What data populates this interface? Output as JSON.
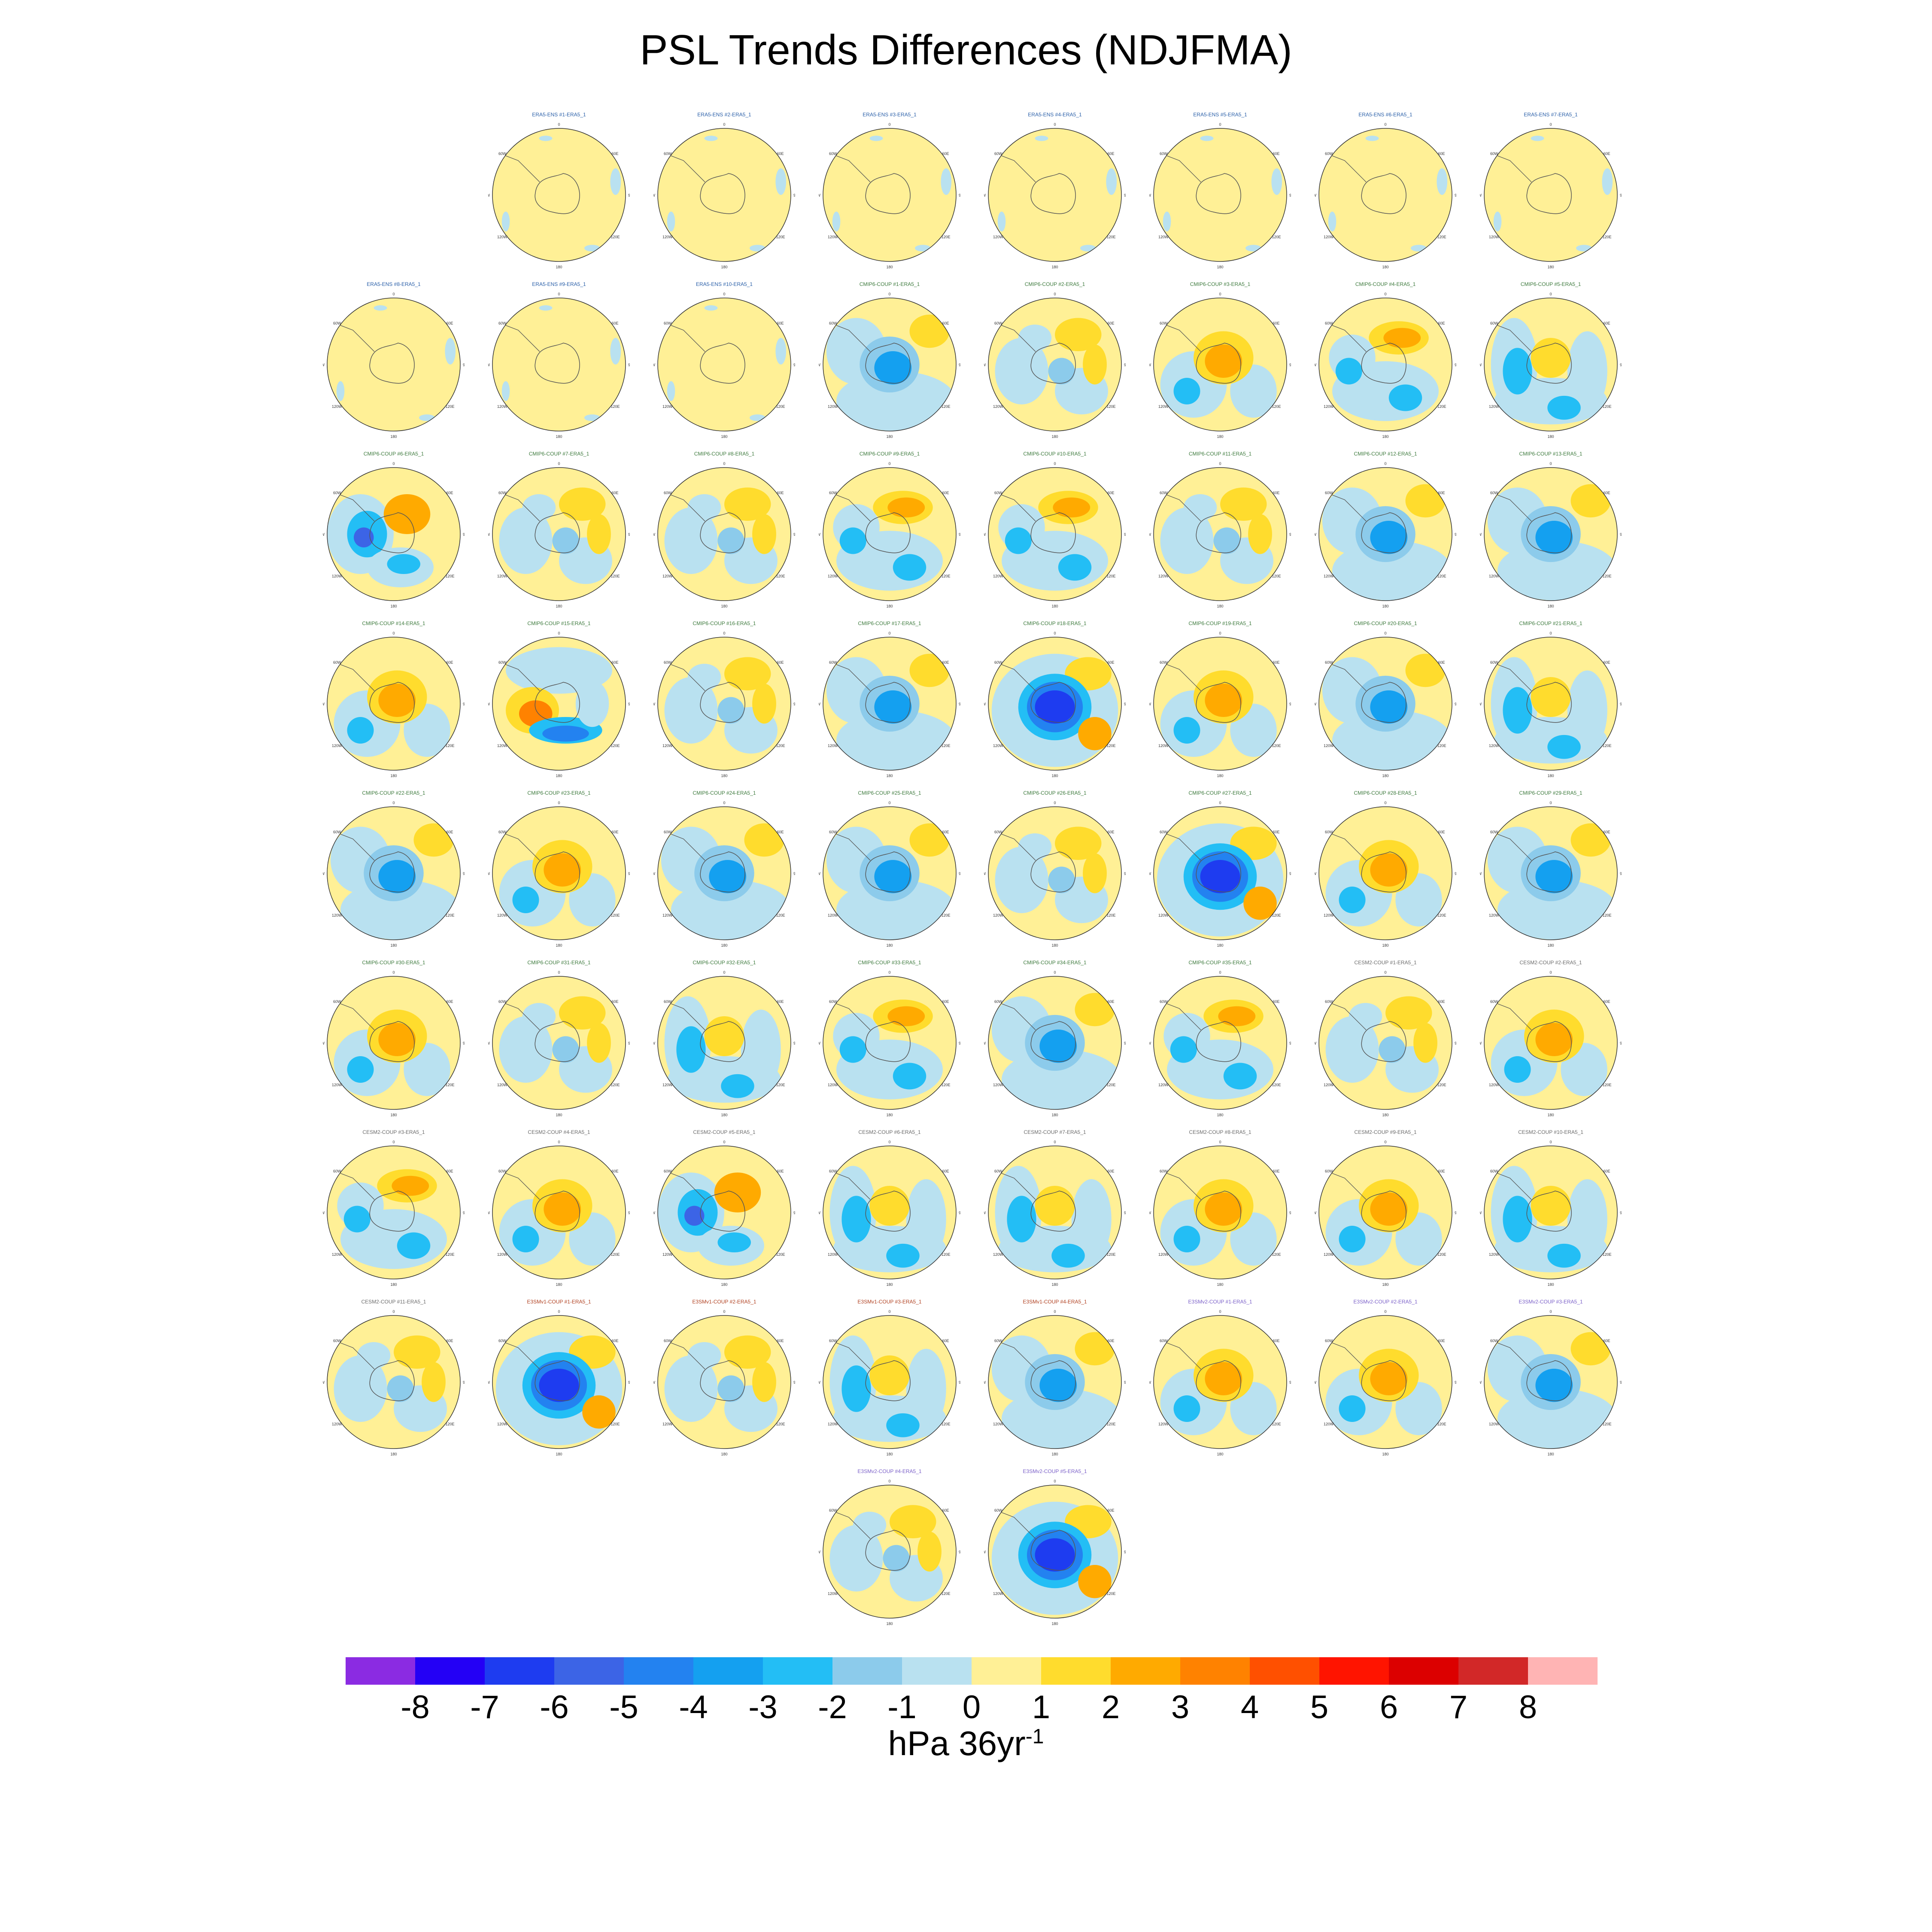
{
  "title": "PSL Trends Differences (NDJFMA)",
  "map_labels": {
    "top": "0",
    "upper_left": "60W",
    "upper_right": "60E",
    "left": "90W",
    "right": "90E",
    "lower_left": "120W",
    "lower_right": "120E",
    "bottom": "180"
  },
  "colorbar": {
    "colors": [
      "#8b2be2",
      "#2400f5",
      "#1e3cf0",
      "#3c64e6",
      "#2382f0",
      "#14a0f0",
      "#23bef5",
      "#8ccbeb",
      "#b9e1f0",
      "#fff096",
      "#ffdc2d",
      "#ffaa00",
      "#ff8200",
      "#ff5000",
      "#ff1400",
      "#dc0000",
      "#d22828",
      "#ffb4b4"
    ],
    "tick_labels": [
      "-8",
      "-7",
      "-6",
      "-5",
      "-4",
      "-3",
      "-2",
      "-1",
      "0",
      "1",
      "2",
      "3",
      "4",
      "5",
      "6",
      "7",
      "8"
    ]
  },
  "units": {
    "base": "hPa 36yr",
    "superscript": "-1"
  },
  "panel_colors": {
    "ERA5-ENS": "#2a5fa8",
    "CMIP6-COUP": "#3d7a3d",
    "CESM2-COUP": "#6b6b6b",
    "E3SMv1-COUP": "#b04020",
    "E3SMv2-COUP": "#7a5fc8"
  },
  "panels": [
    {
      "title": "ERA5-ENS    #1-ERA5_1",
      "group": "ERA5-ENS",
      "pattern": "flat"
    },
    {
      "title": "ERA5-ENS    #2-ERA5_1",
      "group": "ERA5-ENS",
      "pattern": "flat"
    },
    {
      "title": "ERA5-ENS    #3-ERA5_1",
      "group": "ERA5-ENS",
      "pattern": "flat"
    },
    {
      "title": "ERA5-ENS    #4-ERA5_1",
      "group": "ERA5-ENS",
      "pattern": "flat"
    },
    {
      "title": "ERA5-ENS    #5-ERA5_1",
      "group": "ERA5-ENS",
      "pattern": "flat"
    },
    {
      "title": "ERA5-ENS    #6-ERA5_1",
      "group": "ERA5-ENS",
      "pattern": "flat"
    },
    {
      "title": "ERA5-ENS    #7-ERA5_1",
      "group": "ERA5-ENS",
      "pattern": "flat"
    },
    {
      "title": "ERA5-ENS    #8-ERA5_1",
      "group": "ERA5-ENS",
      "pattern": "flat"
    },
    {
      "title": "ERA5-ENS    #9-ERA5_1",
      "group": "ERA5-ENS",
      "pattern": "flat"
    },
    {
      "title": "ERA5-ENS    #10-ERA5_1",
      "group": "ERA5-ENS",
      "pattern": "flat"
    },
    {
      "title": "CMIP6-COUP    #1-ERA5_1",
      "group": "CMIP6-COUP",
      "pattern": "blue-center"
    },
    {
      "title": "CMIP6-COUP    #2-ERA5_1",
      "group": "CMIP6-COUP",
      "pattern": "mixed"
    },
    {
      "title": "CMIP6-COUP    #3-ERA5_1",
      "group": "CMIP6-COUP",
      "pattern": "orange-center"
    },
    {
      "title": "CMIP6-COUP    #4-ERA5_1",
      "group": "CMIP6-COUP",
      "pattern": "orange-north"
    },
    {
      "title": "CMIP6-COUP    #5-ERA5_1",
      "group": "CMIP6-COUP",
      "pattern": "blue-ring"
    },
    {
      "title": "CMIP6-COUP    #6-ERA5_1",
      "group": "CMIP6-COUP",
      "pattern": "blue-west"
    },
    {
      "title": "CMIP6-COUP    #7-ERA5_1",
      "group": "CMIP6-COUP",
      "pattern": "mixed"
    },
    {
      "title": "CMIP6-COUP    #8-ERA5_1",
      "group": "CMIP6-COUP",
      "pattern": "mixed"
    },
    {
      "title": "CMIP6-COUP    #9-ERA5_1",
      "group": "CMIP6-COUP",
      "pattern": "orange-north"
    },
    {
      "title": "CMIP6-COUP    #10-ERA5_1",
      "group": "CMIP6-COUP",
      "pattern": "orange-north"
    },
    {
      "title": "CMIP6-COUP    #11-ERA5_1",
      "group": "CMIP6-COUP",
      "pattern": "mixed"
    },
    {
      "title": "CMIP6-COUP    #12-ERA5_1",
      "group": "CMIP6-COUP",
      "pattern": "blue-center"
    },
    {
      "title": "CMIP6-COUP    #13-ERA5_1",
      "group": "CMIP6-COUP",
      "pattern": "blue-center"
    },
    {
      "title": "CMIP6-COUP    #14-ERA5_1",
      "group": "CMIP6-COUP",
      "pattern": "orange-center"
    },
    {
      "title": "CMIP6-COUP    #15-ERA5_1",
      "group": "CMIP6-COUP",
      "pattern": "red-south"
    },
    {
      "title": "CMIP6-COUP    #16-ERA5_1",
      "group": "CMIP6-COUP",
      "pattern": "mixed"
    },
    {
      "title": "CMIP6-COUP    #17-ERA5_1",
      "group": "CMIP6-COUP",
      "pattern": "blue-center"
    },
    {
      "title": "CMIP6-COUP    #18-ERA5_1",
      "group": "CMIP6-COUP",
      "pattern": "deep-blue"
    },
    {
      "title": "CMIP6-COUP    #19-ERA5_1",
      "group": "CMIP6-COUP",
      "pattern": "orange-center"
    },
    {
      "title": "CMIP6-COUP    #20-ERA5_1",
      "group": "CMIP6-COUP",
      "pattern": "blue-center"
    },
    {
      "title": "CMIP6-COUP    #21-ERA5_1",
      "group": "CMIP6-COUP",
      "pattern": "blue-ring"
    },
    {
      "title": "CMIP6-COUP    #22-ERA5_1",
      "group": "CMIP6-COUP",
      "pattern": "blue-center"
    },
    {
      "title": "CMIP6-COUP    #23-ERA5_1",
      "group": "CMIP6-COUP",
      "pattern": "orange-center"
    },
    {
      "title": "CMIP6-COUP    #24-ERA5_1",
      "group": "CMIP6-COUP",
      "pattern": "blue-center"
    },
    {
      "title": "CMIP6-COUP    #25-ERA5_1",
      "group": "CMIP6-COUP",
      "pattern": "blue-center"
    },
    {
      "title": "CMIP6-COUP    #26-ERA5_1",
      "group": "CMIP6-COUP",
      "pattern": "mixed"
    },
    {
      "title": "CMIP6-COUP    #27-ERA5_1",
      "group": "CMIP6-COUP",
      "pattern": "deep-blue"
    },
    {
      "title": "CMIP6-COUP    #28-ERA5_1",
      "group": "CMIP6-COUP",
      "pattern": "orange-center"
    },
    {
      "title": "CMIP6-COUP    #29-ERA5_1",
      "group": "CMIP6-COUP",
      "pattern": "blue-center"
    },
    {
      "title": "CMIP6-COUP    #30-ERA5_1",
      "group": "CMIP6-COUP",
      "pattern": "orange-center"
    },
    {
      "title": "CMIP6-COUP    #31-ERA5_1",
      "group": "CMIP6-COUP",
      "pattern": "mixed"
    },
    {
      "title": "CMIP6-COUP    #32-ERA5_1",
      "group": "CMIP6-COUP",
      "pattern": "blue-ring"
    },
    {
      "title": "CMIP6-COUP    #33-ERA5_1",
      "group": "CMIP6-COUP",
      "pattern": "orange-north"
    },
    {
      "title": "CMIP6-COUP    #34-ERA5_1",
      "group": "CMIP6-COUP",
      "pattern": "blue-center"
    },
    {
      "title": "CMIP6-COUP    #35-ERA5_1",
      "group": "CMIP6-COUP",
      "pattern": "orange-north"
    },
    {
      "title": "CESM2-COUP    #1-ERA5_1",
      "group": "CESM2-COUP",
      "pattern": "mixed"
    },
    {
      "title": "CESM2-COUP    #2-ERA5_1",
      "group": "CESM2-COUP",
      "pattern": "orange-center"
    },
    {
      "title": "CESM2-COUP    #3-ERA5_1",
      "group": "CESM2-COUP",
      "pattern": "orange-north"
    },
    {
      "title": "CESM2-COUP    #4-ERA5_1",
      "group": "CESM2-COUP",
      "pattern": "orange-center"
    },
    {
      "title": "CESM2-COUP    #5-ERA5_1",
      "group": "CESM2-COUP",
      "pattern": "blue-west"
    },
    {
      "title": "CESM2-COUP    #6-ERA5_1",
      "group": "CESM2-COUP",
      "pattern": "blue-ring"
    },
    {
      "title": "CESM2-COUP    #7-ERA5_1",
      "group": "CESM2-COUP",
      "pattern": "blue-ring"
    },
    {
      "title": "CESM2-COUP    #8-ERA5_1",
      "group": "CESM2-COUP",
      "pattern": "orange-center"
    },
    {
      "title": "CESM2-COUP    #9-ERA5_1",
      "group": "CESM2-COUP",
      "pattern": "orange-center"
    },
    {
      "title": "CESM2-COUP    #10-ERA5_1",
      "group": "CESM2-COUP",
      "pattern": "blue-ring"
    },
    {
      "title": "CESM2-COUP    #11-ERA5_1",
      "group": "CESM2-COUP",
      "pattern": "mixed"
    },
    {
      "title": "E3SMv1-COUP    #1-ERA5_1",
      "group": "E3SMv1-COUP",
      "pattern": "deep-blue"
    },
    {
      "title": "E3SMv1-COUP    #2-ERA5_1",
      "group": "E3SMv1-COUP",
      "pattern": "mixed"
    },
    {
      "title": "E3SMv1-COUP    #3-ERA5_1",
      "group": "E3SMv1-COUP",
      "pattern": "blue-ring"
    },
    {
      "title": "E3SMv1-COUP    #4-ERA5_1",
      "group": "E3SMv1-COUP",
      "pattern": "blue-center"
    },
    {
      "title": "E3SMv2-COUP    #1-ERA5_1",
      "group": "E3SMv2-COUP",
      "pattern": "orange-center"
    },
    {
      "title": "E3SMv2-COUP    #2-ERA5_1",
      "group": "E3SMv2-COUP",
      "pattern": "orange-center"
    },
    {
      "title": "E3SMv2-COUP    #3-ERA5_1",
      "group": "E3SMv2-COUP",
      "pattern": "blue-center"
    },
    {
      "title": "E3SMv2-COUP    #4-ERA5_1",
      "group": "E3SMv2-COUP",
      "pattern": "mixed"
    },
    {
      "title": "E3SMv2-COUP    #5-ERA5_1",
      "group": "E3SMv2-COUP",
      "pattern": "deep-blue"
    }
  ]
}
